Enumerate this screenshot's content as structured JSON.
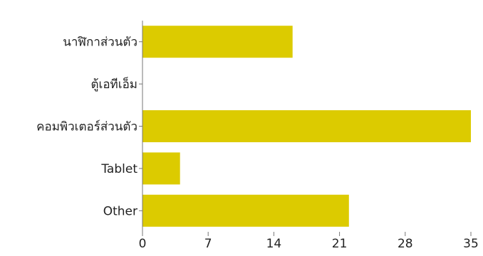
{
  "chart_data": {
    "type": "bar",
    "orientation": "horizontal",
    "title": "",
    "xlabel": "",
    "ylabel": "",
    "categories": [
      "นาฬิกาส่วนตัว",
      "ตู้เอทีเอ็ม",
      "คอมพิวเตอร์ส่วนตัว",
      "Tablet",
      "Other"
    ],
    "values": [
      16,
      0,
      35,
      4,
      22
    ],
    "xlim": [
      0,
      35
    ],
    "xticks": [
      0,
      7,
      14,
      21,
      28,
      35
    ],
    "grid": false,
    "legend": "none",
    "bar_color": "#dccb00",
    "axis_color": "#777777"
  }
}
